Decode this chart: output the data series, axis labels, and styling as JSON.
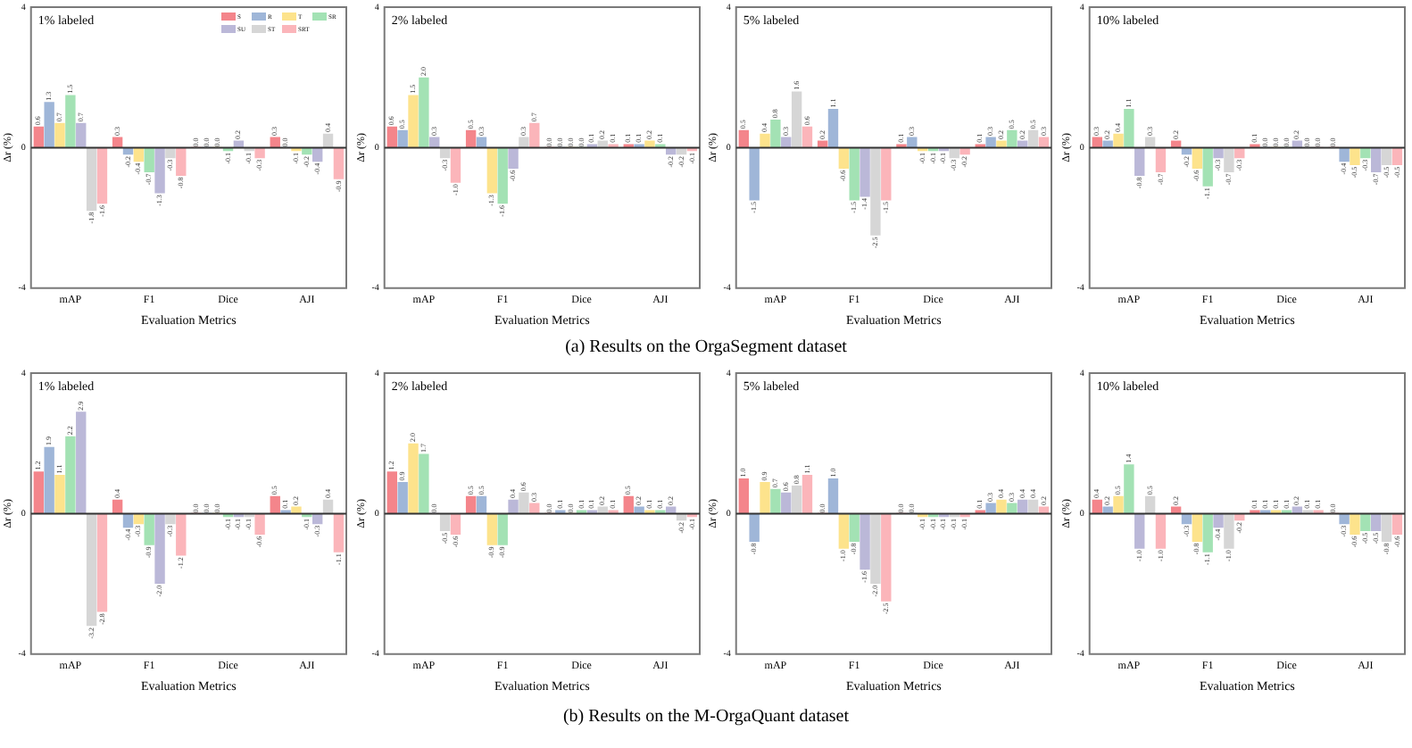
{
  "chart_data": [
    {
      "type": "bar",
      "title": "1% labeled",
      "xlabel": "Evaluation Metrics",
      "ylabel": "Δr (%)",
      "categories": [
        "mAP",
        "F1",
        "Dice",
        "AJI"
      ],
      "ylim": [
        -4,
        4
      ],
      "yticks": [
        -4,
        0,
        4
      ],
      "legend": "top right",
      "annotations": [
        "(a) Results on the OrgaSegment dataset"
      ],
      "series": [
        {
          "name": "S",
          "color": "#f4858b",
          "values": [
            0.6,
            0.3,
            0.0,
            0.3
          ],
          "value_labels": [
            "0.6",
            "0.3",
            "0.0",
            "0.3"
          ]
        },
        {
          "name": "R",
          "color": "#9fb6d8",
          "values": [
            1.3,
            -0.2,
            0.0,
            0.0
          ],
          "value_labels": [
            "1.3",
            "-0.2",
            "0.0",
            "0.0"
          ]
        },
        {
          "name": "T",
          "color": "#fde38c",
          "values": [
            0.7,
            -0.4,
            0.0,
            -0.1
          ],
          "value_labels": [
            "0.7",
            "-0.4",
            "0.0",
            "-0.1"
          ]
        },
        {
          "name": "SR",
          "color": "#a3e2b4",
          "values": [
            1.5,
            -0.7,
            -0.1,
            -0.2
          ],
          "value_labels": [
            "1.5",
            "-0.7",
            "-0.1",
            "-0.2"
          ]
        },
        {
          "name": "SU",
          "color": "#bbb8d8",
          "values": [
            0.7,
            -1.3,
            0.2,
            -0.4
          ],
          "value_labels": [
            "0.7",
            "-1.3",
            "0.2",
            "-0.4"
          ]
        },
        {
          "name": "ST",
          "color": "#d6d6d6",
          "values": [
            -1.8,
            -0.3,
            -0.1,
            0.4
          ],
          "value_labels": [
            "-1.8",
            "-0.3",
            "-0.1",
            "0.4"
          ]
        },
        {
          "name": "SRT",
          "color": "#fbb5ba",
          "values": [
            -1.6,
            -0.8,
            -0.3,
            -0.9
          ],
          "value_labels": [
            "-1.6",
            "-0.8",
            "-0.3",
            "-0.9"
          ]
        }
      ]
    },
    {
      "type": "bar",
      "title": "2% labeled",
      "xlabel": "Evaluation Metrics",
      "ylabel": "Δr (%)",
      "categories": [
        "mAP",
        "F1",
        "Dice",
        "AJI"
      ],
      "ylim": [
        -4,
        4
      ],
      "yticks": [
        -4,
        0,
        4
      ],
      "series": [
        {
          "color": "#f4858b",
          "values": [
            0.6,
            0.5,
            0.0,
            0.1
          ],
          "value_labels": [
            "0.6",
            "0.5",
            "0.0",
            "0.1"
          ]
        },
        {
          "color": "#9fb6d8",
          "values": [
            0.5,
            0.3,
            0.0,
            0.1
          ],
          "value_labels": [
            "0.5",
            "0.3",
            "0.0",
            "0.1"
          ]
        },
        {
          "color": "#fde38c",
          "values": [
            1.5,
            -1.3,
            0.0,
            0.2
          ],
          "value_labels": [
            "1.5",
            "-1.3",
            "0.0",
            "0.2"
          ]
        },
        {
          "color": "#a3e2b4",
          "values": [
            2.0,
            -1.6,
            0.0,
            0.1
          ],
          "value_labels": [
            "2.0",
            "-1.6",
            "0.0",
            "0.1"
          ]
        },
        {
          "color": "#bbb8d8",
          "values": [
            0.3,
            -0.6,
            0.1,
            -0.2
          ],
          "value_labels": [
            "0.3",
            "-0.6",
            "0.1",
            "-0.2"
          ]
        },
        {
          "color": "#d6d6d6",
          "values": [
            -0.3,
            0.3,
            0.2,
            -0.2
          ],
          "value_labels": [
            "-0.3",
            "0.3",
            "0.2",
            "-0.2"
          ]
        },
        {
          "color": "#fbb5ba",
          "values": [
            -1.0,
            0.7,
            0.1,
            -0.1
          ],
          "value_labels": [
            "-1.0",
            "0.7",
            "0.1",
            "-0.1"
          ]
        }
      ]
    },
    {
      "type": "bar",
      "title": "5% labeled",
      "xlabel": "Evaluation Metrics",
      "ylabel": "Δr (%)",
      "categories": [
        "mAP",
        "F1",
        "Dice",
        "AJI"
      ],
      "ylim": [
        -4,
        4
      ],
      "yticks": [
        -4,
        0,
        4
      ],
      "series": [
        {
          "color": "#f4858b",
          "values": [
            0.5,
            0.2,
            0.1,
            0.1
          ],
          "value_labels": [
            "0.5",
            "0.2",
            "0.1",
            "0.1"
          ]
        },
        {
          "color": "#9fb6d8",
          "values": [
            -1.5,
            1.1,
            0.3,
            0.3
          ],
          "value_labels": [
            "-1.5",
            "1.1",
            "0.3",
            "0.3"
          ]
        },
        {
          "color": "#fde38c",
          "values": [
            0.4,
            -0.6,
            -0.1,
            0.2
          ],
          "value_labels": [
            "0.4",
            "-0.6",
            "-0.1",
            "0.2"
          ]
        },
        {
          "color": "#a3e2b4",
          "values": [
            0.8,
            -1.5,
            -0.1,
            0.5
          ],
          "value_labels": [
            "0.8",
            "-1.5",
            "-0.1",
            "0.5"
          ]
        },
        {
          "color": "#bbb8d8",
          "values": [
            0.3,
            -1.4,
            -0.1,
            0.2
          ],
          "value_labels": [
            "0.3",
            "-1.4",
            "-0.1",
            "0.2"
          ]
        },
        {
          "color": "#d6d6d6",
          "values": [
            1.6,
            -2.5,
            -0.3,
            0.5
          ],
          "value_labels": [
            "1.6",
            "-2.5",
            "-0.3",
            "0.5"
          ]
        },
        {
          "color": "#fbb5ba",
          "values": [
            0.6,
            -1.5,
            -0.2,
            0.3
          ],
          "value_labels": [
            "0.6",
            "-1.5",
            "-0.2",
            "0.3"
          ]
        }
      ]
    },
    {
      "type": "bar",
      "title": "10% labeled",
      "xlabel": "Evaluation Metrics",
      "ylabel": "Δr (%)",
      "categories": [
        "mAP",
        "F1",
        "Dice",
        "AJI"
      ],
      "ylim": [
        -4,
        4
      ],
      "yticks": [
        -4,
        0,
        4
      ],
      "series": [
        {
          "color": "#f4858b",
          "values": [
            0.3,
            0.2,
            0.1,
            0.0
          ],
          "value_labels": [
            "0.3",
            "0.2",
            "0.1",
            "0.0"
          ]
        },
        {
          "color": "#9fb6d8",
          "values": [
            0.2,
            -0.2,
            0.0,
            -0.4
          ],
          "value_labels": [
            "0.2",
            "-0.2",
            "0.0",
            "-0.4"
          ]
        },
        {
          "color": "#fde38c",
          "values": [
            0.4,
            -0.6,
            0.0,
            -0.5
          ],
          "value_labels": [
            "0.4",
            "-0.6",
            "0.0",
            "-0.5"
          ]
        },
        {
          "color": "#a3e2b4",
          "values": [
            1.1,
            -1.1,
            0.0,
            -0.3
          ],
          "value_labels": [
            "1.1",
            "-1.1",
            "0.0",
            "-0.3"
          ]
        },
        {
          "color": "#bbb8d8",
          "values": [
            -0.8,
            -0.3,
            0.2,
            -0.7
          ],
          "value_labels": [
            "-0.8",
            "-0.3",
            "0.2",
            "-0.7"
          ]
        },
        {
          "color": "#d6d6d6",
          "values": [
            0.3,
            -0.7,
            0.0,
            -0.5
          ],
          "value_labels": [
            "0.3",
            "-0.7",
            "0.0",
            "-0.5"
          ]
        },
        {
          "color": "#fbb5ba",
          "values": [
            -0.7,
            -0.3,
            0.0,
            -0.5
          ],
          "value_labels": [
            "-0.7",
            "-0.3",
            "0.0",
            "-0.5"
          ]
        }
      ]
    },
    {
      "type": "bar",
      "title": "1% labeled",
      "xlabel": "Evaluation Metrics",
      "ylabel": "Δr (%)",
      "categories": [
        "mAP",
        "F1",
        "Dice",
        "AJI"
      ],
      "ylim": [
        -4,
        4
      ],
      "yticks": [
        -4,
        0,
        4
      ],
      "annotations": [
        "(b) Results on the M-OrgaQuant dataset"
      ],
      "series": [
        {
          "color": "#f4858b",
          "values": [
            1.2,
            0.4,
            0.0,
            0.5
          ],
          "value_labels": [
            "1.2",
            "0.4",
            "0.0",
            "0.5"
          ]
        },
        {
          "color": "#9fb6d8",
          "values": [
            1.9,
            -0.4,
            0.0,
            0.1
          ],
          "value_labels": [
            "1.9",
            "-0.4",
            "0.0",
            "0.1"
          ]
        },
        {
          "color": "#fde38c",
          "values": [
            1.1,
            -0.3,
            0.0,
            0.2
          ],
          "value_labels": [
            "1.1",
            "-0.3",
            "0.0",
            "0.2"
          ]
        },
        {
          "color": "#a3e2b4",
          "values": [
            2.2,
            -0.9,
            -0.1,
            -0.1
          ],
          "value_labels": [
            "2.2",
            "-0.9",
            "-0.1",
            "-0.1"
          ]
        },
        {
          "color": "#bbb8d8",
          "values": [
            2.9,
            -2.0,
            -0.1,
            -0.3
          ],
          "value_labels": [
            "2.9",
            "-2.0",
            "-0.1",
            "-0.3"
          ]
        },
        {
          "color": "#d6d6d6",
          "values": [
            -3.2,
            -0.3,
            -0.1,
            0.4
          ],
          "value_labels": [
            "-3.2",
            "-0.3",
            "-0.1",
            "0.4"
          ]
        },
        {
          "color": "#fbb5ba",
          "values": [
            -2.8,
            -1.2,
            -0.6,
            -1.1
          ],
          "value_labels": [
            "-2.8",
            "-1.2",
            "-0.6",
            "-1.1"
          ]
        }
      ]
    },
    {
      "type": "bar",
      "title": "2% labeled",
      "xlabel": "Evaluation Metrics",
      "ylabel": "Δr (%)",
      "categories": [
        "mAP",
        "F1",
        "Dice",
        "AJI"
      ],
      "ylim": [
        -4,
        4
      ],
      "yticks": [
        -4,
        0,
        4
      ],
      "series": [
        {
          "color": "#f4858b",
          "values": [
            1.2,
            0.5,
            0.0,
            0.5
          ],
          "value_labels": [
            "1.2",
            "0.5",
            "0.0",
            "0.5"
          ]
        },
        {
          "color": "#9fb6d8",
          "values": [
            0.9,
            0.5,
            0.1,
            0.2
          ],
          "value_labels": [
            "0.9",
            "0.5",
            "0.1",
            "0.2"
          ]
        },
        {
          "color": "#fde38c",
          "values": [
            2.0,
            -0.9,
            0.0,
            0.1
          ],
          "value_labels": [
            "2.0",
            "-0.9",
            "0.0",
            "0.1"
          ]
        },
        {
          "color": "#a3e2b4",
          "values": [
            1.7,
            -0.9,
            0.1,
            0.1
          ],
          "value_labels": [
            "1.7",
            "-0.9",
            "0.1",
            "0.1"
          ]
        },
        {
          "color": "#bbb8d8",
          "values": [
            0.0,
            0.4,
            0.1,
            0.2
          ],
          "value_labels": [
            "0.0",
            "0.4",
            "0.1",
            "0.2"
          ]
        },
        {
          "color": "#d6d6d6",
          "values": [
            -0.5,
            0.6,
            0.2,
            -0.2
          ],
          "value_labels": [
            "-0.5",
            "0.6",
            "0.2",
            "-0.2"
          ]
        },
        {
          "color": "#fbb5ba",
          "values": [
            -0.6,
            0.3,
            0.1,
            -0.1
          ],
          "value_labels": [
            "-0.6",
            "0.3",
            "0.1",
            "-0.1"
          ]
        }
      ]
    },
    {
      "type": "bar",
      "title": "5% labeled",
      "xlabel": "Evaluation Metrics",
      "ylabel": "Δr (%)",
      "categories": [
        "mAP",
        "F1",
        "Dice",
        "AJI"
      ],
      "ylim": [
        -4,
        4
      ],
      "yticks": [
        -4,
        0,
        4
      ],
      "series": [
        {
          "color": "#f4858b",
          "values": [
            1.0,
            0.0,
            0.0,
            0.1
          ],
          "value_labels": [
            "1.0",
            "0.0",
            "0.0",
            "0.1"
          ]
        },
        {
          "color": "#9fb6d8",
          "values": [
            -0.8,
            1.0,
            0.0,
            0.3
          ],
          "value_labels": [
            "-0.8",
            "1.0",
            "0.0",
            "0.3"
          ]
        },
        {
          "color": "#fde38c",
          "values": [
            0.9,
            -1.0,
            -0.1,
            0.4
          ],
          "value_labels": [
            "0.9",
            "-1.0",
            "-0.1",
            "0.4"
          ]
        },
        {
          "color": "#a3e2b4",
          "values": [
            0.7,
            -0.8,
            -0.1,
            0.3
          ],
          "value_labels": [
            "0.7",
            "-0.8",
            "-0.1",
            "0.3"
          ]
        },
        {
          "color": "#bbb8d8",
          "values": [
            0.6,
            -1.6,
            -0.1,
            0.4
          ],
          "value_labels": [
            "0.6",
            "-1.6",
            "-0.1",
            "0.4"
          ]
        },
        {
          "color": "#d6d6d6",
          "values": [
            0.8,
            -2.0,
            -0.1,
            0.4
          ],
          "value_labels": [
            "0.8",
            "-2.0",
            "-0.1",
            "0.4"
          ]
        },
        {
          "color": "#fbb5ba",
          "values": [
            1.1,
            -2.5,
            -0.1,
            0.2
          ],
          "value_labels": [
            "1.1",
            "-2.5",
            "-0.1",
            "0.2"
          ]
        }
      ]
    },
    {
      "type": "bar",
      "title": "10% labeled",
      "xlabel": "Evaluation Metrics",
      "ylabel": "Δr (%)",
      "categories": [
        "mAP",
        "F1",
        "Dice",
        "AJI"
      ],
      "ylim": [
        -4,
        4
      ],
      "yticks": [
        -4,
        0,
        4
      ],
      "series": [
        {
          "color": "#f4858b",
          "values": [
            0.4,
            0.2,
            0.1,
            0.0
          ],
          "value_labels": [
            "0.4",
            "0.2",
            "0.1",
            "0.0"
          ]
        },
        {
          "color": "#9fb6d8",
          "values": [
            0.2,
            -0.3,
            0.1,
            -0.3
          ],
          "value_labels": [
            "0.2",
            "-0.3",
            "0.1",
            "-0.3"
          ]
        },
        {
          "color": "#fde38c",
          "values": [
            0.5,
            -0.8,
            0.1,
            -0.6
          ],
          "value_labels": [
            "0.5",
            "-0.8",
            "0.1",
            "-0.6"
          ]
        },
        {
          "color": "#a3e2b4",
          "values": [
            1.4,
            -1.1,
            0.1,
            -0.5
          ],
          "value_labels": [
            "1.4",
            "-1.1",
            "0.1",
            "-0.5"
          ]
        },
        {
          "color": "#bbb8d8",
          "values": [
            -1.0,
            -0.4,
            0.2,
            -0.5
          ],
          "value_labels": [
            "-1.0",
            "-0.4",
            "0.2",
            "-0.5"
          ]
        },
        {
          "color": "#d6d6d6",
          "values": [
            0.5,
            -1.0,
            0.1,
            -0.8
          ],
          "value_labels": [
            "0.5",
            "-1.0",
            "0.1",
            "-0.8"
          ]
        },
        {
          "color": "#fbb5ba",
          "values": [
            -1.0,
            -0.2,
            0.1,
            -0.6
          ],
          "value_labels": [
            "-1.0",
            "-0.2",
            "0.1",
            "-0.6"
          ]
        }
      ]
    }
  ]
}
